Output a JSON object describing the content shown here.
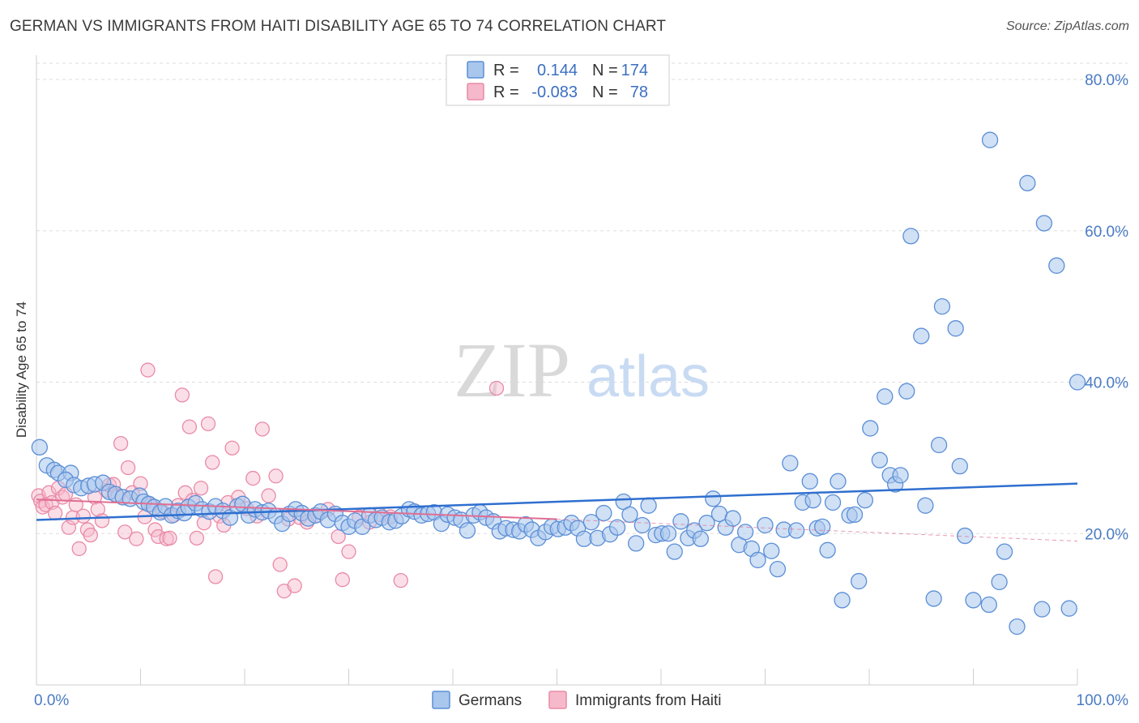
{
  "title": "GERMAN VS IMMIGRANTS FROM HAITI DISABILITY AGE 65 TO 74 CORRELATION CHART",
  "source": "Source: ZipAtlas.com",
  "watermark": {
    "zip": "ZIP",
    "atlas": "atlas"
  },
  "colors": {
    "german_fill": "#a9c6ec",
    "german_stroke": "#5b8fd6",
    "german_line": "#2f6fcf",
    "haiti_fill": "#f6b9cb",
    "haiti_stroke": "#e98aa6",
    "haiti_line": "#e06e92",
    "tick": "#4a7bc4",
    "grid": "#dddddd"
  },
  "legend": {
    "r_label": "R =",
    "n_label": "N =",
    "german_r": "0.144",
    "german_n": "174",
    "haiti_r": "-0.083",
    "haiti_n": "78"
  },
  "chart_data": {
    "type": "scatter",
    "xlabel": "",
    "ylabel": "Disability Age 65 to 74",
    "xlim": [
      0,
      100
    ],
    "ylim": [
      0,
      85
    ],
    "x_tick_labels": [
      "0.0%",
      "100.0%"
    ],
    "y_ticks": [
      20,
      40,
      60,
      80
    ],
    "y_tick_labels": [
      "20.0%",
      "40.0%",
      "60.0%",
      "80.0%"
    ],
    "grid": "horizontal dashed",
    "legend_position": "top-center",
    "series": [
      {
        "name": "Germans",
        "trend": [
          [
            0,
            21.8
          ],
          [
            100,
            26.6
          ]
        ],
        "points": [
          [
            0.3,
            31.4
          ],
          [
            1.0,
            29.0
          ],
          [
            1.7,
            28.4
          ],
          [
            2.1,
            28.0
          ],
          [
            3.3,
            28.0
          ],
          [
            2.8,
            27.1
          ],
          [
            3.6,
            26.4
          ],
          [
            4.3,
            26.0
          ],
          [
            5.0,
            26.3
          ],
          [
            5.6,
            26.5
          ],
          [
            6.4,
            26.7
          ],
          [
            7.0,
            25.5
          ],
          [
            7.6,
            25.2
          ],
          [
            8.3,
            24.8
          ],
          [
            9.0,
            24.6
          ],
          [
            9.9,
            25.0
          ],
          [
            10.3,
            24.2
          ],
          [
            10.8,
            23.9
          ],
          [
            11.3,
            23.5
          ],
          [
            11.9,
            22.8
          ],
          [
            12.4,
            23.6
          ],
          [
            13.0,
            22.4
          ],
          [
            13.6,
            23.0
          ],
          [
            14.2,
            22.7
          ],
          [
            14.6,
            23.5
          ],
          [
            15.3,
            24.0
          ],
          [
            15.9,
            23.2
          ],
          [
            16.6,
            22.9
          ],
          [
            17.2,
            23.6
          ],
          [
            17.9,
            23.0
          ],
          [
            18.6,
            22.1
          ],
          [
            19.3,
            23.6
          ],
          [
            19.8,
            23.9
          ],
          [
            20.4,
            22.4
          ],
          [
            21.0,
            23.2
          ],
          [
            21.7,
            22.8
          ],
          [
            22.3,
            23.0
          ],
          [
            23.0,
            22.3
          ],
          [
            23.6,
            21.3
          ],
          [
            24.3,
            22.6
          ],
          [
            24.9,
            23.2
          ],
          [
            25.5,
            22.7
          ],
          [
            26.1,
            22.0
          ],
          [
            26.8,
            22.4
          ],
          [
            27.3,
            22.9
          ],
          [
            28.0,
            21.8
          ],
          [
            28.7,
            22.6
          ],
          [
            29.4,
            21.4
          ],
          [
            30.0,
            20.9
          ],
          [
            30.6,
            21.7
          ],
          [
            31.3,
            20.9
          ],
          [
            32.0,
            22.4
          ],
          [
            32.6,
            21.8
          ],
          [
            33.2,
            22.1
          ],
          [
            33.9,
            21.5
          ],
          [
            34.5,
            21.7
          ],
          [
            35.1,
            22.3
          ],
          [
            35.8,
            23.2
          ],
          [
            36.3,
            22.9
          ],
          [
            37.0,
            22.4
          ],
          [
            37.6,
            22.6
          ],
          [
            38.2,
            22.8
          ],
          [
            38.9,
            21.3
          ],
          [
            39.5,
            22.5
          ],
          [
            40.2,
            22.1
          ],
          [
            40.8,
            21.8
          ],
          [
            41.4,
            20.4
          ],
          [
            42.0,
            22.4
          ],
          [
            42.6,
            22.8
          ],
          [
            43.2,
            22.1
          ],
          [
            43.9,
            21.6
          ],
          [
            44.5,
            20.3
          ],
          [
            45.1,
            20.7
          ],
          [
            45.8,
            20.5
          ],
          [
            46.4,
            20.3
          ],
          [
            47.0,
            21.2
          ],
          [
            47.6,
            20.5
          ],
          [
            48.2,
            19.4
          ],
          [
            48.9,
            20.2
          ],
          [
            49.5,
            20.9
          ],
          [
            50.1,
            20.6
          ],
          [
            50.8,
            20.8
          ],
          [
            51.4,
            21.4
          ],
          [
            52.0,
            20.7
          ],
          [
            52.6,
            19.3
          ],
          [
            53.3,
            21.5
          ],
          [
            53.9,
            19.4
          ],
          [
            54.5,
            22.7
          ],
          [
            55.1,
            19.9
          ],
          [
            55.8,
            20.8
          ],
          [
            56.4,
            24.2
          ],
          [
            57.0,
            22.5
          ],
          [
            57.6,
            18.7
          ],
          [
            58.2,
            21.1
          ],
          [
            58.8,
            23.7
          ],
          [
            59.5,
            19.8
          ],
          [
            60.1,
            20.0
          ],
          [
            60.7,
            20.0
          ],
          [
            61.3,
            17.6
          ],
          [
            61.9,
            21.6
          ],
          [
            62.6,
            19.4
          ],
          [
            63.2,
            20.4
          ],
          [
            63.8,
            19.3
          ],
          [
            64.4,
            21.4
          ],
          [
            65.0,
            24.6
          ],
          [
            65.6,
            22.6
          ],
          [
            66.2,
            20.8
          ],
          [
            66.9,
            22.0
          ],
          [
            67.5,
            18.5
          ],
          [
            68.1,
            20.2
          ],
          [
            68.7,
            18.0
          ],
          [
            69.3,
            16.5
          ],
          [
            70.0,
            21.1
          ],
          [
            70.6,
            17.7
          ],
          [
            71.2,
            15.3
          ],
          [
            71.8,
            20.5
          ],
          [
            72.4,
            29.3
          ],
          [
            73.0,
            20.4
          ],
          [
            73.6,
            24.1
          ],
          [
            74.3,
            26.9
          ],
          [
            74.6,
            24.4
          ],
          [
            75.0,
            20.7
          ],
          [
            75.5,
            20.9
          ],
          [
            76.0,
            17.8
          ],
          [
            76.5,
            24.1
          ],
          [
            77.0,
            26.9
          ],
          [
            77.4,
            11.2
          ],
          [
            78.1,
            22.4
          ],
          [
            78.6,
            22.5
          ],
          [
            79.0,
            13.7
          ],
          [
            79.6,
            24.4
          ],
          [
            80.1,
            33.9
          ],
          [
            81.0,
            29.7
          ],
          [
            81.5,
            38.1
          ],
          [
            82.0,
            27.7
          ],
          [
            82.5,
            26.5
          ],
          [
            83.0,
            27.7
          ],
          [
            83.6,
            38.8
          ],
          [
            84.0,
            59.3
          ],
          [
            85.0,
            46.1
          ],
          [
            85.4,
            23.7
          ],
          [
            86.2,
            11.4
          ],
          [
            86.7,
            31.7
          ],
          [
            87.0,
            50.0
          ],
          [
            88.3,
            47.1
          ],
          [
            88.7,
            28.9
          ],
          [
            89.2,
            19.7
          ],
          [
            90.0,
            11.2
          ],
          [
            91.5,
            10.6
          ],
          [
            91.6,
            72.0
          ],
          [
            92.5,
            13.6
          ],
          [
            93.0,
            17.6
          ],
          [
            94.2,
            7.7
          ],
          [
            95.2,
            66.3
          ],
          [
            96.6,
            10.0
          ],
          [
            96.8,
            61.0
          ],
          [
            98.0,
            55.4
          ],
          [
            99.2,
            10.1
          ],
          [
            100.0,
            40.0
          ]
        ]
      },
      {
        "name": "Immigrants from Haiti",
        "trend": [
          [
            0,
            24.5
          ],
          [
            50,
            21.9
          ]
        ],
        "trend_dashed": [
          [
            50,
            21.9
          ],
          [
            100,
            19.0
          ]
        ],
        "points": [
          [
            0.2,
            25.0
          ],
          [
            0.4,
            24.3
          ],
          [
            0.6,
            23.5
          ],
          [
            0.9,
            23.8
          ],
          [
            1.2,
            25.4
          ],
          [
            1.5,
            24.1
          ],
          [
            1.8,
            22.7
          ],
          [
            2.1,
            26.0
          ],
          [
            2.5,
            24.8
          ],
          [
            2.8,
            25.2
          ],
          [
            3.1,
            20.8
          ],
          [
            3.5,
            22.1
          ],
          [
            3.8,
            23.8
          ],
          [
            4.1,
            18.0
          ],
          [
            4.5,
            22.3
          ],
          [
            4.9,
            20.5
          ],
          [
            5.2,
            19.8
          ],
          [
            5.6,
            24.8
          ],
          [
            5.9,
            23.2
          ],
          [
            6.3,
            21.7
          ],
          [
            6.7,
            25.7
          ],
          [
            7.0,
            26.4
          ],
          [
            7.4,
            26.5
          ],
          [
            7.8,
            25.0
          ],
          [
            8.1,
            31.9
          ],
          [
            8.5,
            20.2
          ],
          [
            8.8,
            28.7
          ],
          [
            9.2,
            25.4
          ],
          [
            9.6,
            19.3
          ],
          [
            10.0,
            26.6
          ],
          [
            10.4,
            22.2
          ],
          [
            10.7,
            41.6
          ],
          [
            11.0,
            23.8
          ],
          [
            11.4,
            20.5
          ],
          [
            11.7,
            19.6
          ],
          [
            12.1,
            22.9
          ],
          [
            12.5,
            19.3
          ],
          [
            12.8,
            19.4
          ],
          [
            13.2,
            22.4
          ],
          [
            13.6,
            23.7
          ],
          [
            14.0,
            38.3
          ],
          [
            14.3,
            25.4
          ],
          [
            14.7,
            34.1
          ],
          [
            15.0,
            24.4
          ],
          [
            15.4,
            19.4
          ],
          [
            15.8,
            26.0
          ],
          [
            16.1,
            21.4
          ],
          [
            16.5,
            34.5
          ],
          [
            16.9,
            29.4
          ],
          [
            17.2,
            14.3
          ],
          [
            17.6,
            22.3
          ],
          [
            18.0,
            21.1
          ],
          [
            18.4,
            24.1
          ],
          [
            18.8,
            31.3
          ],
          [
            19.4,
            24.8
          ],
          [
            20.2,
            23.3
          ],
          [
            20.8,
            27.3
          ],
          [
            21.2,
            22.3
          ],
          [
            21.7,
            33.8
          ],
          [
            22.3,
            25.0
          ],
          [
            23.0,
            27.6
          ],
          [
            23.4,
            15.9
          ],
          [
            23.8,
            12.4
          ],
          [
            24.2,
            21.9
          ],
          [
            24.8,
            13.1
          ],
          [
            25.3,
            22.1
          ],
          [
            26.0,
            21.5
          ],
          [
            27.0,
            22.4
          ],
          [
            28.0,
            23.2
          ],
          [
            29.0,
            19.6
          ],
          [
            29.4,
            13.9
          ],
          [
            30.0,
            17.6
          ],
          [
            31.0,
            22.2
          ],
          [
            32.0,
            21.5
          ],
          [
            33.0,
            22.5
          ],
          [
            34.0,
            22.2
          ],
          [
            35.0,
            13.8
          ],
          [
            44.2,
            39.2
          ]
        ]
      }
    ]
  },
  "bottom_legend": {
    "german": "Germans",
    "haiti": "Immigrants from Haiti"
  }
}
